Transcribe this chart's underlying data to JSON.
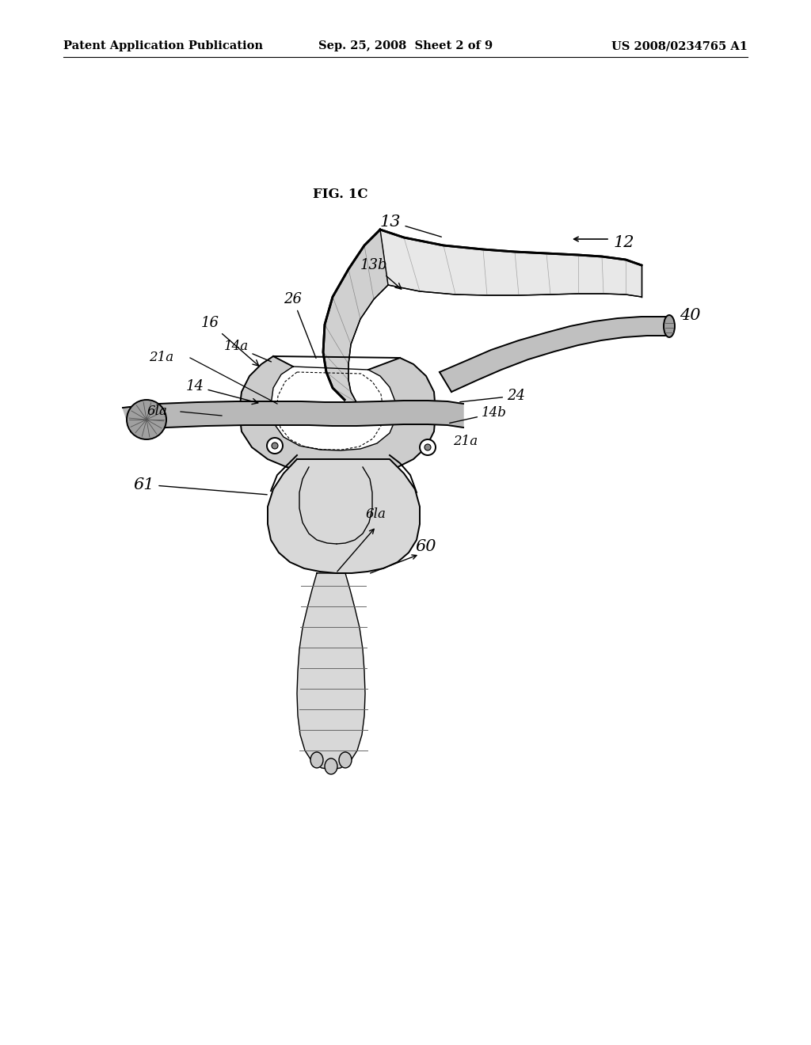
{
  "background_color": "#ffffff",
  "header_left": "Patent Application Publication",
  "header_center": "Sep. 25, 2008  Sheet 2 of 9",
  "header_right": "US 2008/0234765 A1",
  "fig_label": "FIG. 1C",
  "header_font_size": 10.5,
  "fig_label_font_size": 12,
  "label_font_size": 13
}
